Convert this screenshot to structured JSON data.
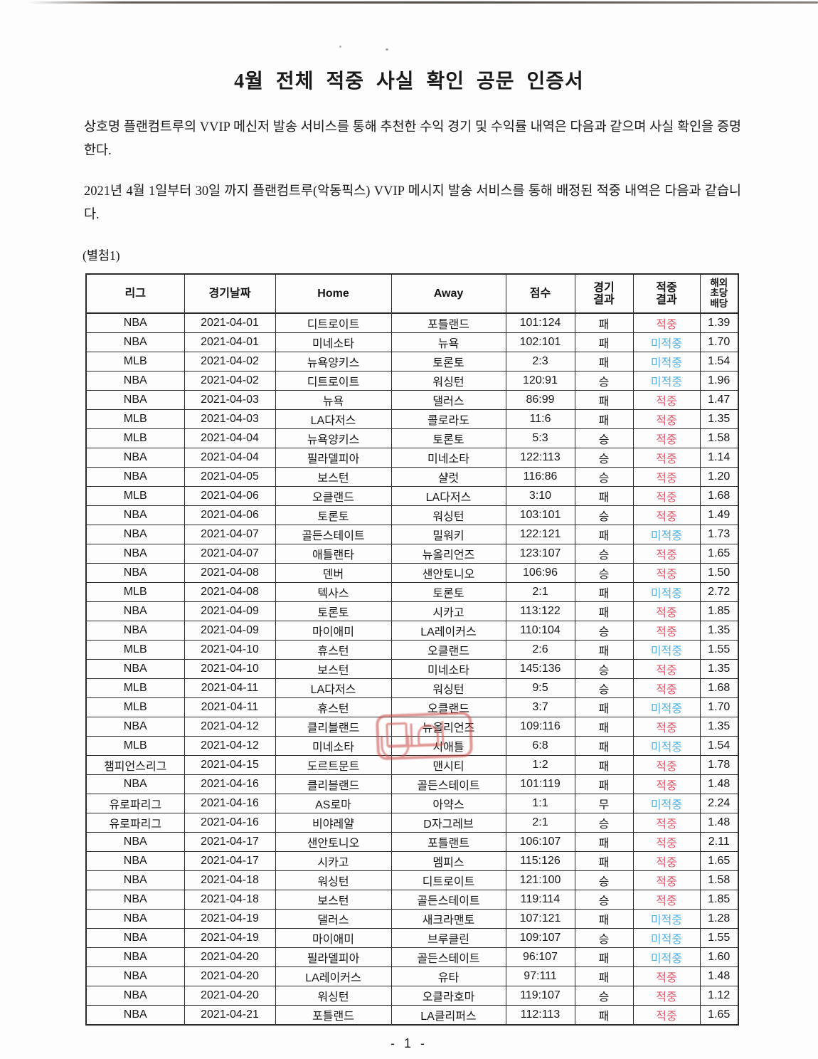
{
  "document": {
    "title": "4월 전체 적중 사실 확인 공문 인증서",
    "intro": "상호명 플랜컴트루의 VVIP 메신저 발송 서비스를 통해 추천한 수익 경기 및 수익률 내역은 다음과 같으며 사실 확인을 증명한다.",
    "period": "2021년 4월 1일부터 30일 까지 플랜컴트루(악동픽스) VVIP 메시지 발송 서비스를 통해 배정된 적중 내역은 다음과 같습니다.",
    "attachment_label": "(별첨1)",
    "page_number": "- 1 -"
  },
  "table": {
    "headers": [
      "리그",
      "경기날짜",
      "Home",
      "Away",
      "점수",
      "경기\n결과",
      "적중\n결과",
      "해외\n초당\n배당"
    ],
    "hit_value": "적중",
    "miss_value": "미적중",
    "rows": [
      [
        "NBA",
        "2021-04-01",
        "디트로이트",
        "포틀랜드",
        "101:124",
        "패",
        "적중",
        "1.39"
      ],
      [
        "NBA",
        "2021-04-01",
        "미네소타",
        "뉴욕",
        "102:101",
        "패",
        "미적중",
        "1.70"
      ],
      [
        "MLB",
        "2021-04-02",
        "뉴욕양키스",
        "토론토",
        "2:3",
        "패",
        "미적중",
        "1.54"
      ],
      [
        "NBA",
        "2021-04-02",
        "디트로이트",
        "워싱턴",
        "120:91",
        "승",
        "미적중",
        "1.96"
      ],
      [
        "NBA",
        "2021-04-03",
        "뉴욕",
        "댈러스",
        "86:99",
        "패",
        "적중",
        "1.47"
      ],
      [
        "MLB",
        "2021-04-03",
        "LA다저스",
        "콜로라도",
        "11:6",
        "패",
        "적중",
        "1.35"
      ],
      [
        "MLB",
        "2021-04-04",
        "뉴욕양키스",
        "토론토",
        "5:3",
        "승",
        "적중",
        "1.58"
      ],
      [
        "NBA",
        "2021-04-04",
        "필라델피아",
        "미네소타",
        "122:113",
        "승",
        "적중",
        "1.14"
      ],
      [
        "NBA",
        "2021-04-05",
        "보스턴",
        "샬럿",
        "116:86",
        "승",
        "적중",
        "1.20"
      ],
      [
        "MLB",
        "2021-04-06",
        "오클랜드",
        "LA다저스",
        "3:10",
        "패",
        "적중",
        "1.68"
      ],
      [
        "NBA",
        "2021-04-06",
        "토론토",
        "워싱턴",
        "103:101",
        "승",
        "적중",
        "1.49"
      ],
      [
        "NBA",
        "2021-04-07",
        "골든스테이트",
        "밀워키",
        "122:121",
        "패",
        "미적중",
        "1.73"
      ],
      [
        "NBA",
        "2021-04-07",
        "애틀랜타",
        "뉴올리언즈",
        "123:107",
        "승",
        "적중",
        "1.65"
      ],
      [
        "NBA",
        "2021-04-08",
        "덴버",
        "샌안토니오",
        "106:96",
        "승",
        "적중",
        "1.50"
      ],
      [
        "MLB",
        "2021-04-08",
        "텍사스",
        "토론토",
        "2:1",
        "패",
        "미적중",
        "2.72"
      ],
      [
        "NBA",
        "2021-04-09",
        "토론토",
        "시카고",
        "113:122",
        "패",
        "적중",
        "1.85"
      ],
      [
        "NBA",
        "2021-04-09",
        "마이애미",
        "LA레이커스",
        "110:104",
        "승",
        "적중",
        "1.35"
      ],
      [
        "MLB",
        "2021-04-10",
        "휴스턴",
        "오클랜드",
        "2:6",
        "패",
        "미적중",
        "1.55"
      ],
      [
        "NBA",
        "2021-04-10",
        "보스턴",
        "미네소타",
        "145:136",
        "승",
        "적중",
        "1.35"
      ],
      [
        "MLB",
        "2021-04-11",
        "LA다저스",
        "워싱턴",
        "9:5",
        "승",
        "적중",
        "1.68"
      ],
      [
        "MLB",
        "2021-04-11",
        "휴스턴",
        "오클랜드",
        "3:7",
        "패",
        "미적중",
        "1.70"
      ],
      [
        "NBA",
        "2021-04-12",
        "클리블랜드",
        "뉴올리언즈",
        "109:116",
        "패",
        "적중",
        "1.35"
      ],
      [
        "MLB",
        "2021-04-12",
        "미네소타",
        "시애틀",
        "6:8",
        "패",
        "미적중",
        "1.54"
      ],
      [
        "챔피언스리그",
        "2021-04-15",
        "도르트문트",
        "맨시티",
        "1:2",
        "패",
        "적중",
        "1.78"
      ],
      [
        "NBA",
        "2021-04-16",
        "클리블랜드",
        "골든스테이트",
        "101:119",
        "패",
        "적중",
        "1.48"
      ],
      [
        "유로파리그",
        "2021-04-16",
        "AS로마",
        "아약스",
        "1:1",
        "무",
        "미적중",
        "2.24"
      ],
      [
        "유로파리그",
        "2021-04-16",
        "비야레얄",
        "D자그레브",
        "2:1",
        "승",
        "적중",
        "1.48"
      ],
      [
        "NBA",
        "2021-04-17",
        "샌안토니오",
        "포틀랜트",
        "106:107",
        "패",
        "적중",
        "2.11"
      ],
      [
        "NBA",
        "2021-04-17",
        "시카고",
        "멤피스",
        "115:126",
        "패",
        "적중",
        "1.65"
      ],
      [
        "NBA",
        "2021-04-18",
        "워싱턴",
        "디트로이트",
        "121:100",
        "승",
        "적중",
        "1.58"
      ],
      [
        "NBA",
        "2021-04-18",
        "보스턴",
        "골든스테이트",
        "119:114",
        "승",
        "적중",
        "1.85"
      ],
      [
        "NBA",
        "2021-04-19",
        "댈러스",
        "새크라맨토",
        "107:121",
        "패",
        "미적중",
        "1.28"
      ],
      [
        "NBA",
        "2021-04-19",
        "마이애미",
        "브루클린",
        "109:107",
        "승",
        "미적중",
        "1.55"
      ],
      [
        "NBA",
        "2021-04-20",
        "필라델피아",
        "골든스테이트",
        "96:107",
        "패",
        "미적중",
        "1.60"
      ],
      [
        "NBA",
        "2021-04-20",
        "LA레이커스",
        "유타",
        "97:111",
        "패",
        "적중",
        "1.48"
      ],
      [
        "NBA",
        "2021-04-20",
        "워싱턴",
        "오클라호마",
        "119:107",
        "승",
        "적중",
        "1.12"
      ],
      [
        "NBA",
        "2021-04-21",
        "포틀랜드",
        "LA클리퍼스",
        "112:113",
        "패",
        "적중",
        "1.65"
      ]
    ]
  },
  "colors": {
    "hit": "#e05a6c",
    "miss": "#53b2e4",
    "stamp": "#c84440",
    "border": "#2a2a2a"
  },
  "stamp": {
    "name": "red-seal-stamp"
  }
}
